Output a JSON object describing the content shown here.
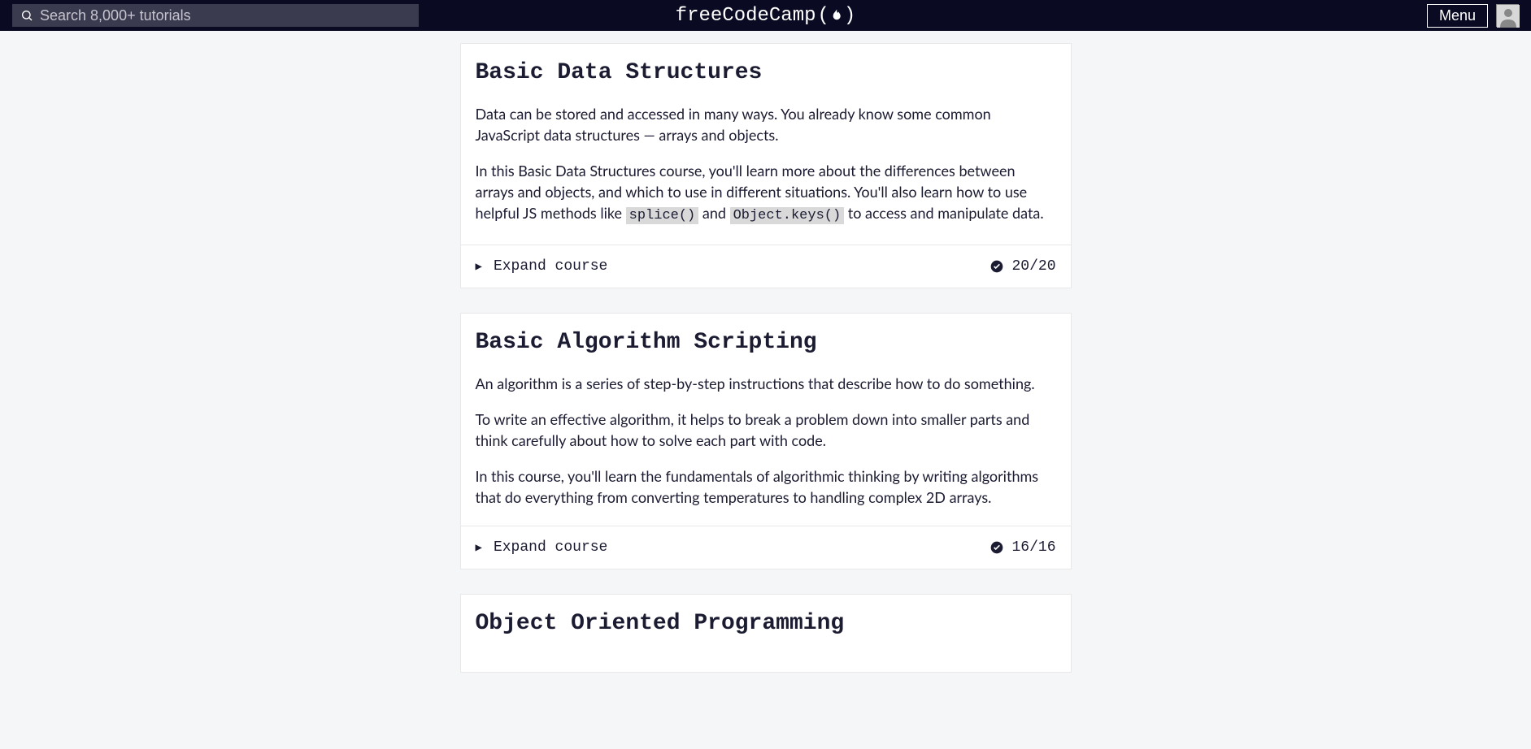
{
  "navbar": {
    "search_placeholder": "Search 8,000+ tutorials",
    "logo_text": "freeCodeCamp",
    "menu_label": "Menu"
  },
  "courses": [
    {
      "title": "Basic Data Structures",
      "paragraphs": [
        {
          "type": "plain",
          "text": "Data can be stored and accessed in many ways. You already know some common JavaScript data structures — arrays and objects."
        },
        {
          "type": "with_code",
          "parts": [
            "In this Basic Data Structures course, you'll learn more about the differences between arrays and objects, and which to use in different situations. You'll also learn how to use helpful JS methods like ",
            {
              "code": "splice()"
            },
            " and ",
            {
              "code": "Object.keys()"
            },
            " to access and manipulate data."
          ]
        }
      ],
      "expand_label": "Expand course",
      "progress": "20/20"
    },
    {
      "title": "Basic Algorithm Scripting",
      "paragraphs": [
        {
          "type": "plain",
          "text": "An algorithm is a series of step-by-step instructions that describe how to do something."
        },
        {
          "type": "plain",
          "text": "To write an effective algorithm, it helps to break a problem down into smaller parts and think carefully about how to solve each part with code."
        },
        {
          "type": "plain",
          "text": "In this course, you'll learn the fundamentals of algorithmic thinking by writing algorithms that do everything from converting temperatures to handling complex 2D arrays."
        }
      ],
      "expand_label": "Expand course",
      "progress": "16/16"
    },
    {
      "title": "Object Oriented Programming",
      "paragraphs": [],
      "expand_label": "",
      "progress": ""
    }
  ],
  "colors": {
    "navbar_bg": "#0a0a23",
    "search_bg": "#3b3b4f",
    "page_bg": "#f5f6f7",
    "card_bg": "#ffffff",
    "text": "#1b1b32",
    "code_bg": "#d9d9da",
    "border": "#e8e8ea"
  }
}
